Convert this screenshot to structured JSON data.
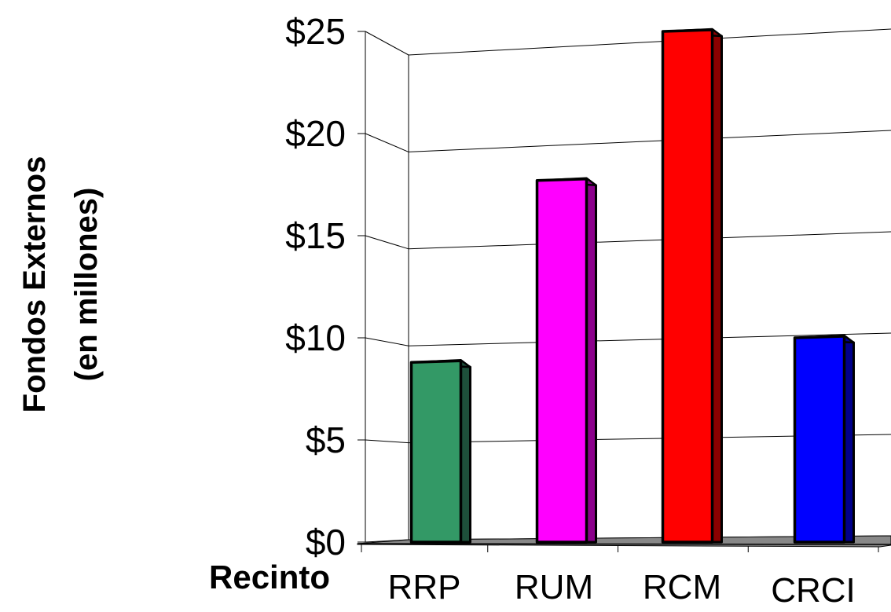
{
  "chart_data": {
    "type": "bar",
    "title": "",
    "xlabel": "Recinto",
    "ylabel_lines": [
      "Fondos Externos",
      "(en millones)"
    ],
    "categories": [
      "RRP",
      "RUM",
      "RCM",
      "CRCI"
    ],
    "values": [
      8.8,
      17.7,
      25.0,
      10.0
    ],
    "ylim": [
      0,
      25
    ],
    "yticks": [
      0,
      5,
      10,
      15,
      20,
      25
    ],
    "ytick_labels": [
      "$0",
      "$5",
      "$10",
      "$15",
      "$20",
      "$25"
    ],
    "bar_colors": [
      "#339966",
      "#FF00FF",
      "#FF0000",
      "#0000FF"
    ],
    "bar_side_colors": [
      "#1E4F3A",
      "#8B008B",
      "#8B0000",
      "#00008B"
    ],
    "grid": true,
    "legend": "none",
    "style": "3d-bar"
  }
}
